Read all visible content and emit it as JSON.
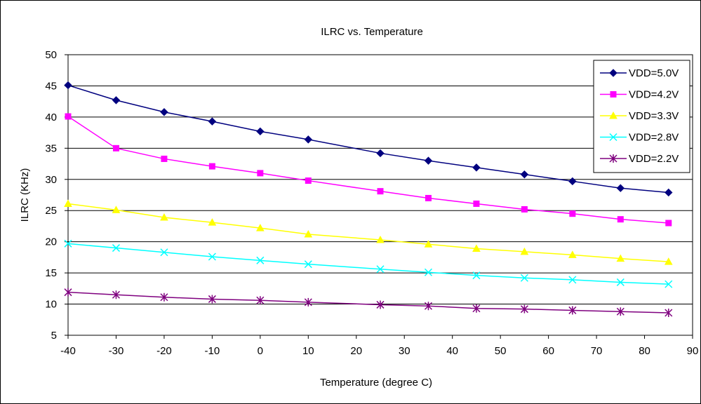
{
  "chart_data": {
    "type": "line",
    "title": "ILRC vs. Temperature",
    "xlabel": "Temperature (degree C)",
    "ylabel": "ILRC (KHz)",
    "xlim": [
      -40,
      90
    ],
    "ylim": [
      5,
      50
    ],
    "xticks": [
      -40,
      -30,
      -20,
      -10,
      0,
      10,
      20,
      30,
      40,
      50,
      60,
      70,
      80,
      90
    ],
    "yticks": [
      5,
      10,
      15,
      20,
      25,
      30,
      35,
      40,
      45,
      50
    ],
    "grid": "horizontal",
    "legend_position": "top-right",
    "x": [
      -40,
      -30,
      -20,
      -10,
      0,
      10,
      25,
      35,
      45,
      55,
      65,
      75,
      85
    ],
    "series": [
      {
        "name": "VDD=5.0V",
        "color": "#00007f",
        "marker": "diamond",
        "values": [
          45.1,
          42.7,
          40.8,
          39.3,
          37.7,
          36.4,
          34.2,
          33.0,
          31.9,
          30.8,
          29.7,
          28.6,
          27.9
        ]
      },
      {
        "name": "VDD=4.2V",
        "color": "#ff00ff",
        "marker": "square",
        "values": [
          40.1,
          35.0,
          33.3,
          32.1,
          31.0,
          29.8,
          28.1,
          27.0,
          26.1,
          25.2,
          24.5,
          23.6,
          23.0
        ]
      },
      {
        "name": "VDD=3.3V",
        "color": "#ffff00",
        "marker": "triangle",
        "values": [
          26.1,
          25.1,
          23.9,
          23.1,
          22.2,
          21.2,
          20.3,
          19.6,
          18.9,
          18.4,
          17.9,
          17.3,
          16.8
        ]
      },
      {
        "name": "VDD=2.8V",
        "color": "#00ffff",
        "marker": "x",
        "values": [
          19.7,
          19.0,
          18.3,
          17.6,
          17.0,
          16.4,
          15.6,
          15.1,
          14.6,
          14.2,
          13.9,
          13.5,
          13.2
        ]
      },
      {
        "name": "VDD=2.2V",
        "color": "#7f007f",
        "marker": "star",
        "values": [
          11.9,
          11.5,
          11.1,
          10.8,
          10.6,
          10.3,
          9.9,
          9.7,
          9.3,
          9.2,
          9.0,
          8.8,
          8.6
        ]
      }
    ]
  }
}
